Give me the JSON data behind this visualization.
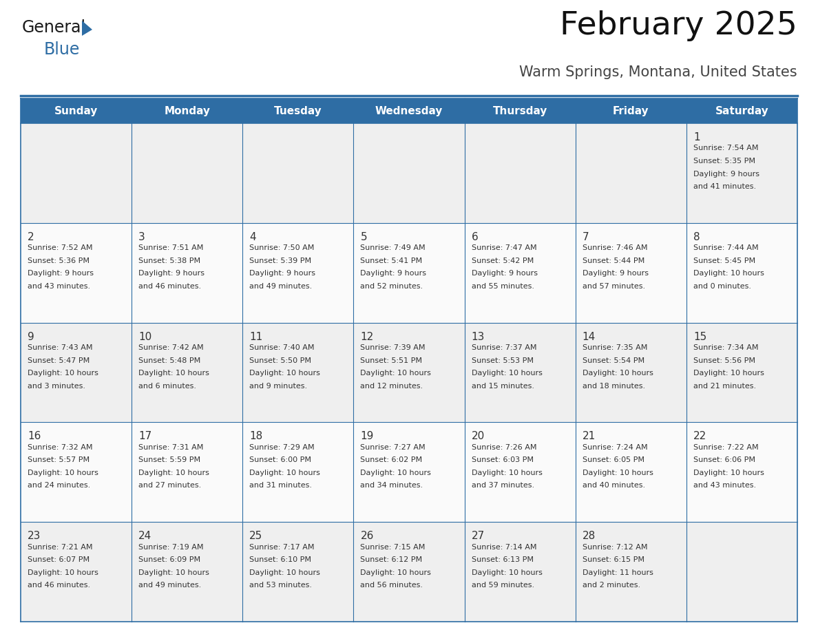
{
  "title": "February 2025",
  "subtitle": "Warm Springs, Montana, United States",
  "header_bg": "#2E6DA4",
  "header_text_color": "#FFFFFF",
  "cell_bg_odd": "#EFEFEF",
  "cell_bg_even": "#FAFAFA",
  "border_color": "#2E6DA4",
  "text_color": "#333333",
  "day_number_color": "#333333",
  "day_headers": [
    "Sunday",
    "Monday",
    "Tuesday",
    "Wednesday",
    "Thursday",
    "Friday",
    "Saturday"
  ],
  "days": [
    {
      "day": 1,
      "col": 6,
      "row": 0,
      "sunrise": "7:54 AM",
      "sunset": "5:35 PM",
      "daylight": "9 hours and 41 minutes."
    },
    {
      "day": 2,
      "col": 0,
      "row": 1,
      "sunrise": "7:52 AM",
      "sunset": "5:36 PM",
      "daylight": "9 hours and 43 minutes."
    },
    {
      "day": 3,
      "col": 1,
      "row": 1,
      "sunrise": "7:51 AM",
      "sunset": "5:38 PM",
      "daylight": "9 hours and 46 minutes."
    },
    {
      "day": 4,
      "col": 2,
      "row": 1,
      "sunrise": "7:50 AM",
      "sunset": "5:39 PM",
      "daylight": "9 hours and 49 minutes."
    },
    {
      "day": 5,
      "col": 3,
      "row": 1,
      "sunrise": "7:49 AM",
      "sunset": "5:41 PM",
      "daylight": "9 hours and 52 minutes."
    },
    {
      "day": 6,
      "col": 4,
      "row": 1,
      "sunrise": "7:47 AM",
      "sunset": "5:42 PM",
      "daylight": "9 hours and 55 minutes."
    },
    {
      "day": 7,
      "col": 5,
      "row": 1,
      "sunrise": "7:46 AM",
      "sunset": "5:44 PM",
      "daylight": "9 hours and 57 minutes."
    },
    {
      "day": 8,
      "col": 6,
      "row": 1,
      "sunrise": "7:44 AM",
      "sunset": "5:45 PM",
      "daylight": "10 hours and 0 minutes."
    },
    {
      "day": 9,
      "col": 0,
      "row": 2,
      "sunrise": "7:43 AM",
      "sunset": "5:47 PM",
      "daylight": "10 hours and 3 minutes."
    },
    {
      "day": 10,
      "col": 1,
      "row": 2,
      "sunrise": "7:42 AM",
      "sunset": "5:48 PM",
      "daylight": "10 hours and 6 minutes."
    },
    {
      "day": 11,
      "col": 2,
      "row": 2,
      "sunrise": "7:40 AM",
      "sunset": "5:50 PM",
      "daylight": "10 hours and 9 minutes."
    },
    {
      "day": 12,
      "col": 3,
      "row": 2,
      "sunrise": "7:39 AM",
      "sunset": "5:51 PM",
      "daylight": "10 hours and 12 minutes."
    },
    {
      "day": 13,
      "col": 4,
      "row": 2,
      "sunrise": "7:37 AM",
      "sunset": "5:53 PM",
      "daylight": "10 hours and 15 minutes."
    },
    {
      "day": 14,
      "col": 5,
      "row": 2,
      "sunrise": "7:35 AM",
      "sunset": "5:54 PM",
      "daylight": "10 hours and 18 minutes."
    },
    {
      "day": 15,
      "col": 6,
      "row": 2,
      "sunrise": "7:34 AM",
      "sunset": "5:56 PM",
      "daylight": "10 hours and 21 minutes."
    },
    {
      "day": 16,
      "col": 0,
      "row": 3,
      "sunrise": "7:32 AM",
      "sunset": "5:57 PM",
      "daylight": "10 hours and 24 minutes."
    },
    {
      "day": 17,
      "col": 1,
      "row": 3,
      "sunrise": "7:31 AM",
      "sunset": "5:59 PM",
      "daylight": "10 hours and 27 minutes."
    },
    {
      "day": 18,
      "col": 2,
      "row": 3,
      "sunrise": "7:29 AM",
      "sunset": "6:00 PM",
      "daylight": "10 hours and 31 minutes."
    },
    {
      "day": 19,
      "col": 3,
      "row": 3,
      "sunrise": "7:27 AM",
      "sunset": "6:02 PM",
      "daylight": "10 hours and 34 minutes."
    },
    {
      "day": 20,
      "col": 4,
      "row": 3,
      "sunrise": "7:26 AM",
      "sunset": "6:03 PM",
      "daylight": "10 hours and 37 minutes."
    },
    {
      "day": 21,
      "col": 5,
      "row": 3,
      "sunrise": "7:24 AM",
      "sunset": "6:05 PM",
      "daylight": "10 hours and 40 minutes."
    },
    {
      "day": 22,
      "col": 6,
      "row": 3,
      "sunrise": "7:22 AM",
      "sunset": "6:06 PM",
      "daylight": "10 hours and 43 minutes."
    },
    {
      "day": 23,
      "col": 0,
      "row": 4,
      "sunrise": "7:21 AM",
      "sunset": "6:07 PM",
      "daylight": "10 hours and 46 minutes."
    },
    {
      "day": 24,
      "col": 1,
      "row": 4,
      "sunrise": "7:19 AM",
      "sunset": "6:09 PM",
      "daylight": "10 hours and 49 minutes."
    },
    {
      "day": 25,
      "col": 2,
      "row": 4,
      "sunrise": "7:17 AM",
      "sunset": "6:10 PM",
      "daylight": "10 hours and 53 minutes."
    },
    {
      "day": 26,
      "col": 3,
      "row": 4,
      "sunrise": "7:15 AM",
      "sunset": "6:12 PM",
      "daylight": "10 hours and 56 minutes."
    },
    {
      "day": 27,
      "col": 4,
      "row": 4,
      "sunrise": "7:14 AM",
      "sunset": "6:13 PM",
      "daylight": "10 hours and 59 minutes."
    },
    {
      "day": 28,
      "col": 5,
      "row": 4,
      "sunrise": "7:12 AM",
      "sunset": "6:15 PM",
      "daylight": "11 hours and 2 minutes."
    }
  ],
  "num_rows": 5,
  "num_cols": 7,
  "logo_text_general": "General",
  "logo_text_blue": "Blue",
  "logo_color_general": "#1a1a1a",
  "logo_color_blue": "#2E6DA4",
  "logo_triangle_color": "#2E6DA4",
  "fig_width": 11.88,
  "fig_height": 9.18,
  "dpi": 100
}
